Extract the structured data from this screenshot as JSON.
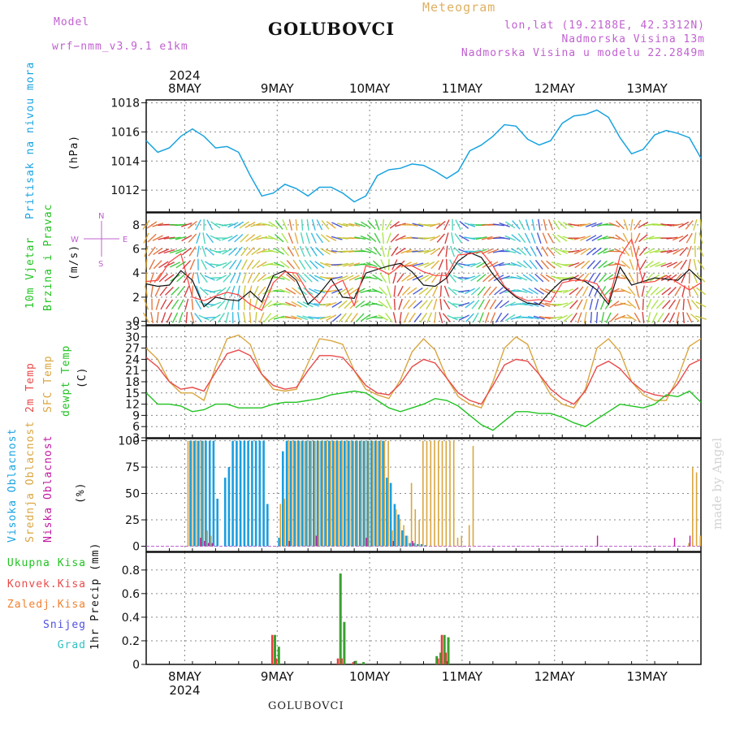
{
  "header": {
    "model_label": "Model",
    "model_name": "wrf−nmm_v3.9.1  e1km",
    "title": "GOLUBOVCI",
    "subtitle": "Meteogram",
    "lonlat": "lon,lat (19.2188E, 42.3312N)",
    "elevation": "Nadmorska Visina 13m",
    "model_elevation": "Nadmorska Visina u modelu 22.2849m",
    "footer": "GOLUBOVCI",
    "credit": "made by Angel"
  },
  "colors": {
    "pressure": "#1aa3e0",
    "temp": "#e84a4a",
    "sfc": "#d9a640",
    "dewpt": "#22c322",
    "high_cloud": "#1a9ee0",
    "mid_cloud": "#d9a640",
    "low_cloud": "#c019a0",
    "rain": "#3aa030",
    "conv": "#e83c3c",
    "purple": "#c060d0"
  },
  "axes": {
    "day_labels": [
      "8MAY",
      "9MAY",
      "10MAY",
      "11MAY",
      "12MAY",
      "13MAY"
    ],
    "year": "2024"
  },
  "chart_data": [
    {
      "type": "line",
      "panel": "pressure",
      "ylabel_left": "Pritisak na nivou mora",
      "ylabel_unit": "(hPa)",
      "ylim": [
        1010.5,
        1018.2
      ],
      "yticks": [
        1012,
        1014,
        1016,
        1018
      ],
      "x_hours": [
        0,
        3,
        6,
        9,
        12,
        15,
        18,
        21,
        24,
        27,
        30,
        33,
        36,
        39,
        42,
        45,
        48,
        51,
        54,
        57,
        60,
        63,
        66,
        69,
        72,
        75,
        78,
        81,
        84,
        87,
        90,
        93,
        96,
        99,
        102,
        105,
        108,
        111,
        114,
        117,
        120,
        123,
        126,
        129,
        132,
        135,
        138,
        141,
        144
      ],
      "series": [
        {
          "name": "Pritisak na nivou mora",
          "values": [
            1015.4,
            1014.6,
            1014.9,
            1015.7,
            1016.2,
            1015.7,
            1014.9,
            1015.0,
            1014.6,
            1013.0,
            1011.6,
            1011.8,
            1012.4,
            1012.1,
            1011.6,
            1012.2,
            1012.2,
            1011.8,
            1011.2,
            1011.6,
            1013.0,
            1013.4,
            1013.5,
            1013.8,
            1013.7,
            1013.3,
            1012.8,
            1013.3,
            1014.7,
            1015.1,
            1015.7,
            1016.5,
            1016.4,
            1015.5,
            1015.1,
            1015.4,
            1016.6,
            1017.1,
            1017.2,
            1017.5,
            1017.0,
            1015.6,
            1014.5,
            1014.8,
            1015.8,
            1016.1,
            1015.9,
            1015.6,
            1014.2
          ]
        }
      ]
    },
    {
      "type": "line",
      "panel": "wind",
      "ylabel_left": "10m Vjetar",
      "ylabel_left2": "Brzina i Pravac",
      "ylabel_unit": "(m/s)",
      "compass": {
        "w": "W",
        "e": "E",
        "n": "N",
        "s": "S"
      },
      "ylim": [
        -0.3,
        9
      ],
      "yticks": [
        0,
        2,
        4,
        6,
        8
      ],
      "x_hours": [
        0,
        3,
        6,
        9,
        12,
        15,
        18,
        21,
        24,
        27,
        30,
        33,
        36,
        39,
        42,
        45,
        48,
        51,
        54,
        57,
        60,
        63,
        66,
        69,
        72,
        75,
        78,
        81,
        84,
        87,
        90,
        93,
        96,
        99,
        102,
        105,
        108,
        111,
        114,
        117,
        120,
        123,
        126,
        129,
        132,
        135,
        138,
        141,
        144
      ],
      "series": [
        {
          "name": "wind speed",
          "values": [
            3.1,
            2.9,
            3.0,
            4.2,
            3.4,
            1.2,
            2.0,
            1.8,
            1.7,
            2.5,
            1.6,
            3.8,
            4.2,
            3.4,
            1.4,
            2.3,
            3.5,
            2.0,
            1.9,
            4.0,
            4.3,
            4.6,
            4.8,
            4.1,
            3.0,
            2.9,
            3.6,
            5.0,
            5.7,
            5.3,
            3.9,
            2.8,
            2.0,
            1.5,
            1.4,
            2.5,
            3.4,
            3.6,
            3.3,
            2.6,
            1.4,
            4.5,
            3.0,
            3.3,
            3.6,
            3.5,
            3.4,
            4.3,
            3.4
          ]
        },
        {
          "name": "gust",
          "values": [
            3.3,
            3.4,
            4.9,
            5.6,
            2.0,
            1.7,
            2.1,
            2.4,
            2.2,
            1.4,
            0.9,
            3.2,
            4.1,
            4.0,
            2.4,
            1.5,
            2.9,
            3.4,
            1.3,
            4.6,
            4.4,
            3.9,
            4.6,
            4.6,
            4.1,
            3.8,
            3.8,
            5.5,
            5.6,
            5.8,
            4.6,
            2.9,
            2.1,
            1.7,
            1.8,
            1.6,
            3.2,
            3.4,
            3.4,
            3.1,
            1.6,
            5.4,
            6.8,
            3.2,
            3.3,
            3.8,
            3.2,
            2.6,
            3.2
          ]
        }
      ]
    },
    {
      "type": "line",
      "panel": "temperature",
      "ylabel_left": "2m Temp",
      "ylabel_left2": "SFC Temp",
      "ylabel_left3": "dewpt Temp",
      "ylabel_unit": "(C)",
      "ylim": [
        3,
        33
      ],
      "yticks": [
        3,
        6,
        9,
        12,
        15,
        18,
        21,
        24,
        27,
        30,
        33
      ],
      "x_hours": [
        0,
        3,
        6,
        9,
        12,
        15,
        18,
        21,
        24,
        27,
        30,
        33,
        36,
        39,
        42,
        45,
        48,
        51,
        54,
        57,
        60,
        63,
        66,
        69,
        72,
        75,
        78,
        81,
        84,
        87,
        90,
        93,
        96,
        99,
        102,
        105,
        108,
        111,
        114,
        117,
        120,
        123,
        126,
        129,
        132,
        135,
        138,
        141,
        144
      ],
      "series": [
        {
          "name": "2m Temp",
          "values": [
            24.5,
            22.0,
            18.0,
            16.0,
            16.5,
            15.5,
            20.5,
            25.5,
            26.5,
            25.0,
            20.0,
            17.0,
            16.0,
            16.5,
            21.0,
            25.0,
            25.0,
            24.5,
            21.0,
            17.0,
            15.0,
            14.5,
            17.5,
            22.0,
            24.0,
            23.0,
            19.0,
            15.0,
            13.0,
            12.0,
            17.0,
            22.5,
            24.0,
            23.5,
            20.0,
            16.0,
            13.5,
            12.0,
            15.5,
            22.0,
            23.5,
            21.5,
            18.0,
            15.5,
            14.5,
            14.0,
            17.5,
            22.5,
            24.0
          ]
        },
        {
          "name": "SFC Temp",
          "values": [
            27.0,
            24.0,
            18.0,
            15.0,
            15.0,
            13.0,
            22.0,
            29.5,
            30.5,
            28.0,
            20.0,
            16.0,
            15.5,
            16.0,
            23.0,
            29.5,
            29.0,
            28.0,
            21.0,
            16.0,
            14.5,
            13.5,
            18.5,
            26.0,
            29.5,
            26.5,
            19.0,
            14.0,
            12.0,
            11.0,
            18.0,
            27.0,
            30.0,
            28.0,
            20.0,
            14.5,
            12.0,
            11.0,
            16.0,
            27.0,
            29.5,
            26.0,
            18.0,
            14.5,
            13.0,
            13.0,
            19.0,
            27.5,
            29.5
          ]
        },
        {
          "name": "dewpt Temp",
          "values": [
            15.0,
            12.0,
            12.0,
            11.5,
            10.0,
            10.5,
            12.0,
            12.0,
            11.0,
            11.0,
            11.0,
            12.0,
            12.5,
            12.5,
            13.0,
            13.5,
            14.5,
            15.0,
            15.5,
            15.0,
            13.0,
            11.0,
            10.0,
            11.0,
            12.0,
            13.5,
            13.0,
            11.5,
            9.0,
            6.5,
            5.0,
            7.5,
            10.0,
            10.0,
            9.5,
            9.5,
            8.5,
            7.0,
            6.0,
            8.0,
            10.0,
            12.0,
            11.5,
            11.0,
            12.0,
            14.5,
            14.0,
            15.5,
            12.5
          ]
        }
      ]
    },
    {
      "type": "bar",
      "panel": "cloud",
      "ylabel_left": "Visoka Oblacnost",
      "ylabel_left2": "Srednja Oblacnost",
      "ylabel_left3": "Niska Oblacnost",
      "ylabel_unit": "(%)",
      "ylim": [
        -5,
        102
      ],
      "yticks": [
        0,
        25,
        50,
        75,
        100
      ],
      "high": [
        [
          11,
          100
        ],
        [
          12,
          100
        ],
        [
          13,
          100
        ],
        [
          14,
          100
        ],
        [
          15,
          100
        ],
        [
          16,
          100
        ],
        [
          17,
          100
        ],
        [
          18,
          45
        ],
        [
          20,
          65
        ],
        [
          21,
          75
        ],
        [
          22,
          100
        ],
        [
          23,
          100
        ],
        [
          24,
          100
        ],
        [
          25,
          100
        ],
        [
          26,
          100
        ],
        [
          27,
          100
        ],
        [
          28,
          100
        ],
        [
          29,
          100
        ],
        [
          30,
          100
        ],
        [
          31,
          40
        ],
        [
          34,
          8
        ],
        [
          35,
          90
        ],
        [
          36,
          100
        ],
        [
          37,
          100
        ],
        [
          38,
          100
        ],
        [
          39,
          100
        ],
        [
          40,
          100
        ],
        [
          41,
          100
        ],
        [
          42,
          100
        ],
        [
          43,
          100
        ],
        [
          44,
          100
        ],
        [
          45,
          100
        ],
        [
          46,
          100
        ],
        [
          47,
          100
        ],
        [
          48,
          100
        ],
        [
          49,
          100
        ],
        [
          50,
          100
        ],
        [
          51,
          100
        ],
        [
          52,
          100
        ],
        [
          53,
          100
        ],
        [
          54,
          100
        ],
        [
          55,
          100
        ],
        [
          56,
          100
        ],
        [
          57,
          100
        ],
        [
          58,
          100
        ],
        [
          59,
          100
        ],
        [
          60,
          100
        ],
        [
          61,
          100
        ],
        [
          62,
          65
        ],
        [
          63,
          60
        ],
        [
          64,
          40
        ],
        [
          65,
          30
        ],
        [
          66,
          15
        ],
        [
          67,
          10
        ],
        [
          68,
          3
        ],
        [
          69,
          3
        ],
        [
          70,
          2
        ],
        [
          71,
          2
        ],
        [
          72,
          1
        ]
      ],
      "mid": [
        [
          11,
          100
        ],
        [
          12,
          100
        ],
        [
          13,
          100
        ],
        [
          14,
          100
        ],
        [
          15,
          100
        ],
        [
          16,
          15
        ],
        [
          17,
          10
        ],
        [
          35,
          40
        ],
        [
          36,
          45
        ],
        [
          37,
          100
        ],
        [
          38,
          100
        ],
        [
          39,
          100
        ],
        [
          40,
          100
        ],
        [
          41,
          100
        ],
        [
          42,
          100
        ],
        [
          43,
          100
        ],
        [
          44,
          100
        ],
        [
          45,
          100
        ],
        [
          46,
          100
        ],
        [
          47,
          100
        ],
        [
          48,
          100
        ],
        [
          49,
          100
        ],
        [
          50,
          100
        ],
        [
          51,
          100
        ],
        [
          52,
          100
        ],
        [
          53,
          100
        ],
        [
          54,
          100
        ],
        [
          55,
          100
        ],
        [
          56,
          100
        ],
        [
          57,
          100
        ],
        [
          58,
          100
        ],
        [
          59,
          100
        ],
        [
          60,
          100
        ],
        [
          61,
          100
        ],
        [
          62,
          100
        ],
        [
          63,
          100
        ],
        [
          64,
          15
        ],
        [
          65,
          35
        ],
        [
          66,
          25
        ],
        [
          67,
          20
        ],
        [
          68,
          10
        ],
        [
          69,
          60
        ],
        [
          70,
          35
        ],
        [
          71,
          25
        ],
        [
          72,
          100
        ],
        [
          73,
          100
        ],
        [
          74,
          100
        ],
        [
          75,
          100
        ],
        [
          76,
          100
        ],
        [
          77,
          100
        ],
        [
          78,
          100
        ],
        [
          79,
          100
        ],
        [
          80,
          100
        ],
        [
          81,
          8
        ],
        [
          82,
          10
        ],
        [
          84,
          20
        ],
        [
          85,
          95
        ],
        [
          141,
          3
        ],
        [
          142,
          75
        ],
        [
          143,
          70
        ],
        [
          144,
          10
        ]
      ],
      "low": [
        [
          14,
          8
        ],
        [
          15,
          5
        ],
        [
          16,
          3
        ],
        [
          17,
          3
        ],
        [
          37,
          5
        ],
        [
          44,
          10
        ],
        [
          57,
          8
        ],
        [
          64,
          5
        ],
        [
          69,
          5
        ],
        [
          117,
          10
        ],
        [
          137,
          8
        ],
        [
          141,
          10
        ]
      ]
    },
    {
      "type": "bar",
      "panel": "precipitation",
      "ylabel_unit": "1hr Precip (mm)",
      "legend": [
        "Ukupna Kisa",
        "Konvek.Kisa",
        "Zaledj.Kisa",
        "Snijeg",
        "Grad"
      ],
      "ylim": [
        0,
        0.95
      ],
      "yticks": [
        0,
        0.2,
        0.4,
        0.6,
        0.8
      ],
      "total": [
        [
          33,
          0.25
        ],
        [
          34,
          0.15
        ],
        [
          50,
          0.77
        ],
        [
          51,
          0.36
        ],
        [
          54,
          0.03
        ],
        [
          56,
          0.02
        ],
        [
          75,
          0.07
        ],
        [
          76,
          0.1
        ],
        [
          77,
          0.25
        ],
        [
          78,
          0.23
        ]
      ],
      "conv": [
        [
          33,
          0.25
        ],
        [
          34,
          0.05
        ],
        [
          50,
          0.05
        ],
        [
          51,
          0.05
        ],
        [
          54,
          0.02
        ],
        [
          76,
          0.05
        ],
        [
          77,
          0.25
        ],
        [
          78,
          0.1
        ]
      ]
    }
  ]
}
